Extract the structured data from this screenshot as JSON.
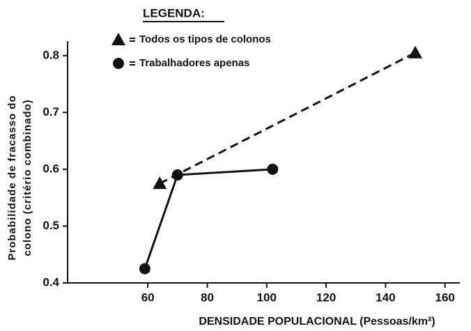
{
  "chart_data": {
    "type": "line",
    "legend_title": "LEGENDA:",
    "ylabel": [
      "Probabilidade de fracasso do",
      "colono (critério combinado)"
    ],
    "xlabel": "DENSIDADE POPULACIONAL (Pessoas/km²)",
    "xlim": [
      33,
      165
    ],
    "ylim": [
      0.4,
      0.85
    ],
    "xticks": [
      60,
      80,
      100,
      120,
      140,
      160
    ],
    "yticks": [
      0.4,
      0.5,
      0.6,
      0.7,
      0.8
    ],
    "series": [
      {
        "name": "Todos os tipos de colonos",
        "marker": "triangle",
        "dashed": true,
        "color": "#111",
        "x": [
          64,
          150
        ],
        "values": [
          0.575,
          0.805
        ]
      },
      {
        "name": "Trabalhadores apenas",
        "marker": "circle",
        "dashed": false,
        "color": "#111",
        "x": [
          59,
          70,
          102
        ],
        "values": [
          0.425,
          0.59,
          0.6
        ]
      }
    ]
  }
}
